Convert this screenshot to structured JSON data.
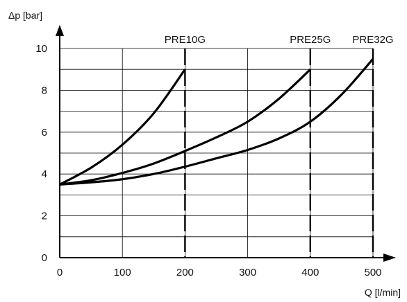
{
  "chart_data": {
    "type": "line",
    "xlabel": "Q [l/min]",
    "ylabel": "Δp [bar]",
    "xlim": [
      0,
      500
    ],
    "ylim": [
      0,
      10
    ],
    "x_ticks": [
      0,
      100,
      200,
      300,
      400,
      500
    ],
    "y_ticks": [
      0,
      2,
      4,
      6,
      8,
      10
    ],
    "grid": true,
    "series": [
      {
        "name": "PRE10G",
        "max_flow": 200,
        "x": [
          0,
          50,
          100,
          150,
          200
        ],
        "y": [
          3.5,
          4.3,
          5.4,
          6.9,
          9.0
        ]
      },
      {
        "name": "PRE25G",
        "max_flow": 400,
        "x": [
          0,
          50,
          100,
          150,
          200,
          250,
          300,
          350,
          400
        ],
        "y": [
          3.5,
          3.7,
          4.05,
          4.5,
          5.1,
          5.75,
          6.5,
          7.6,
          9.0
        ]
      },
      {
        "name": "PRE32G",
        "max_flow": 500,
        "x": [
          0,
          50,
          100,
          150,
          200,
          250,
          300,
          350,
          400,
          450,
          500
        ],
        "y": [
          3.5,
          3.6,
          3.75,
          4.0,
          4.35,
          4.75,
          5.15,
          5.7,
          6.5,
          7.8,
          9.5
        ]
      }
    ]
  }
}
